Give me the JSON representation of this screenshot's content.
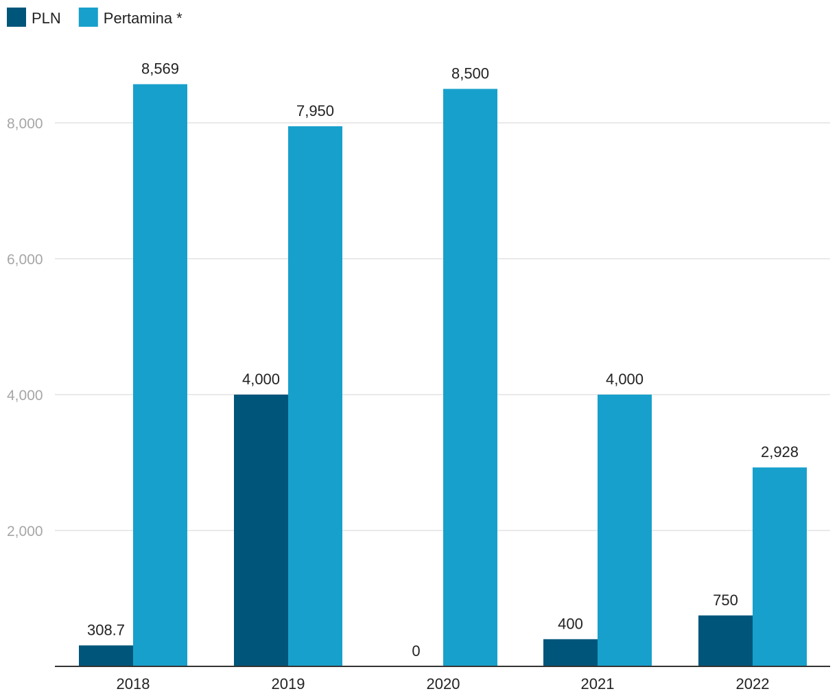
{
  "chart_data": {
    "type": "bar",
    "categories": [
      "2018",
      "2019",
      "2020",
      "2021",
      "2022"
    ],
    "series": [
      {
        "name": "PLN",
        "color": "#00557a",
        "values": [
          308.7,
          4000,
          0,
          400,
          750
        ],
        "labels": [
          "308.7",
          "4,000",
          "0",
          "400",
          "750"
        ]
      },
      {
        "name": "Pertamina *",
        "color": "#18a0cc",
        "values": [
          8569,
          7950,
          8500,
          4000,
          2928
        ],
        "labels": [
          "8,569",
          "7,950",
          "8,500",
          "4,000",
          "2,928"
        ]
      }
    ],
    "y_ticks": [
      2000,
      4000,
      6000,
      8000
    ],
    "y_tick_labels": [
      "2,000",
      "4,000",
      "6,000",
      "8,000"
    ],
    "ylim": [
      0,
      8800
    ],
    "grid": true,
    "legend": {
      "position": "top-left"
    },
    "title": "",
    "xlabel": "",
    "ylabel": ""
  }
}
